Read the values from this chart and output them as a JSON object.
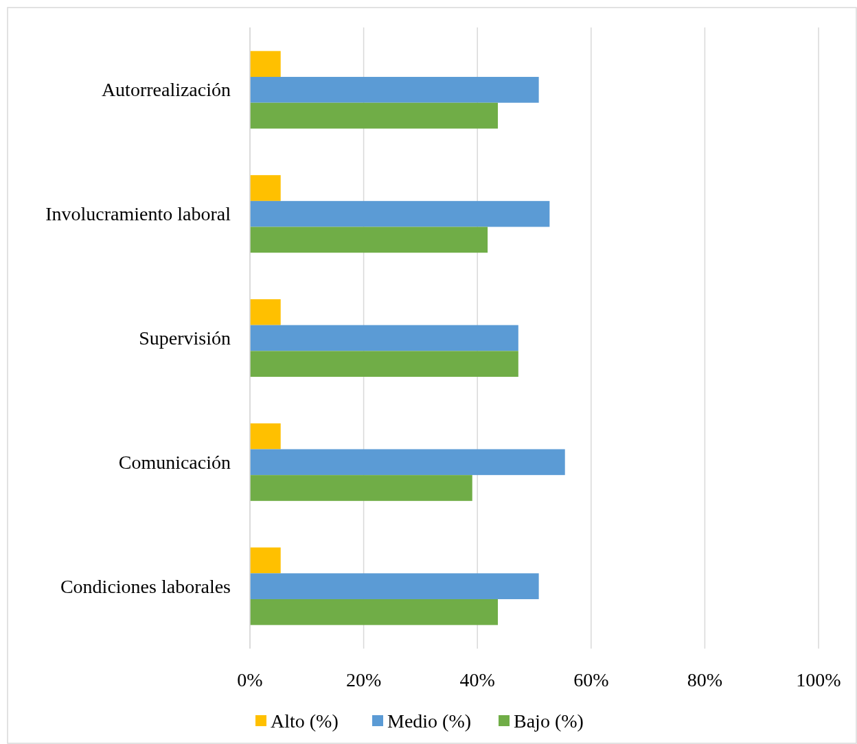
{
  "chart_data": {
    "type": "bar",
    "orientation": "horizontal",
    "categories": [
      "Autorrealización",
      "Involucramiento laboral",
      "Supervisión",
      "Comunicación",
      "Condiciones laborales"
    ],
    "series": [
      {
        "name": "Alto (%)",
        "color": "#ffc000",
        "values": [
          5.4,
          5.4,
          5.4,
          5.4,
          5.4
        ]
      },
      {
        "name": "Medio (%)",
        "color": "#5b9bd5",
        "values": [
          50.8,
          52.7,
          47.2,
          55.4,
          50.8
        ]
      },
      {
        "name": "Bajo (%)",
        "color": "#70ad47",
        "values": [
          43.6,
          41.8,
          47.2,
          39.1,
          43.6
        ]
      }
    ],
    "xlim": [
      0,
      100
    ],
    "xticks": [
      {
        "value": 0,
        "label": "0%"
      },
      {
        "value": 20,
        "label": "20%"
      },
      {
        "value": 40,
        "label": "40%"
      },
      {
        "value": 60,
        "label": "60%"
      },
      {
        "value": 80,
        "label": "80%"
      },
      {
        "value": 100,
        "label": "100%"
      }
    ],
    "grid": "x",
    "legend": "bottom"
  }
}
